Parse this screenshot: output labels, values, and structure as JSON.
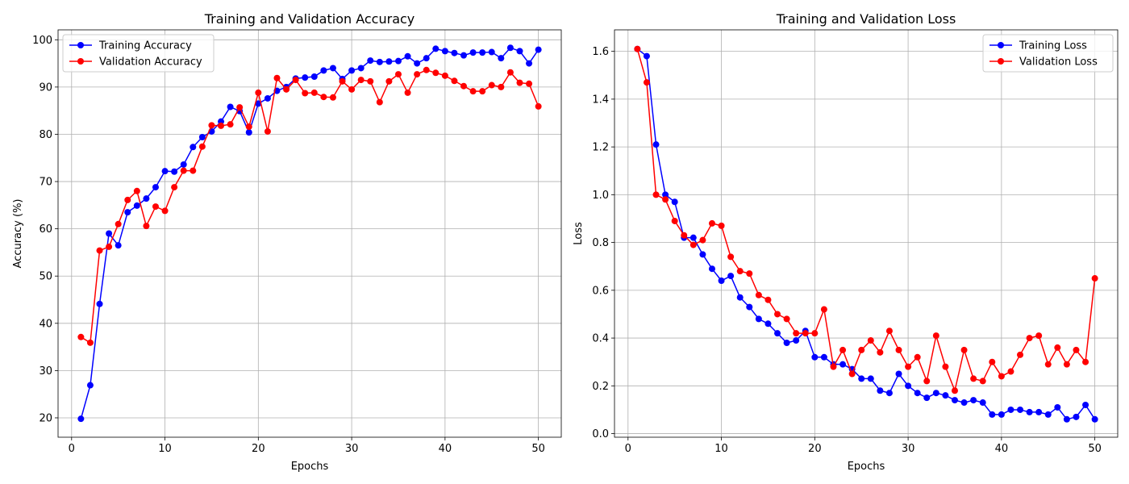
{
  "chart_data": [
    {
      "type": "line",
      "title": "Training and Validation Accuracy",
      "xlabel": "Epochs",
      "ylabel": "Accuracy (%)",
      "xlim": [
        -1.45,
        52.45
      ],
      "ylim": [
        15.9,
        102.1
      ],
      "xticks": [
        0,
        10,
        20,
        30,
        40,
        50
      ],
      "yticks": [
        20,
        30,
        40,
        50,
        60,
        70,
        80,
        90,
        100
      ],
      "grid": true,
      "legend": "upper left",
      "x": [
        1,
        2,
        3,
        4,
        5,
        6,
        7,
        8,
        9,
        10,
        11,
        12,
        13,
        14,
        15,
        16,
        17,
        18,
        19,
        20,
        21,
        22,
        23,
        24,
        25,
        26,
        27,
        28,
        29,
        30,
        31,
        32,
        33,
        34,
        35,
        36,
        37,
        38,
        39,
        40,
        41,
        42,
        43,
        44,
        45,
        46,
        47,
        48,
        49,
        50
      ],
      "series": [
        {
          "name": "Training Accuracy",
          "color": "#0000ff",
          "values": [
            19.8,
            26.9,
            44.1,
            59.0,
            56.5,
            63.5,
            64.9,
            66.4,
            68.8,
            72.2,
            72.1,
            73.6,
            77.3,
            79.4,
            80.6,
            82.7,
            85.8,
            84.9,
            80.4,
            86.5,
            87.6,
            89.2,
            90.0,
            91.8,
            92.0,
            92.2,
            93.5,
            94.0,
            91.7,
            93.5,
            94.0,
            95.6,
            95.3,
            95.4,
            95.5,
            96.5,
            95.0,
            96.1,
            98.1,
            97.6,
            97.2,
            96.7,
            97.3,
            97.3,
            97.4,
            96.1,
            98.3,
            97.6,
            95.0,
            97.9
          ]
        },
        {
          "name": "Validation Accuracy",
          "color": "#ff0000",
          "values": [
            37.1,
            35.9,
            55.4,
            56.2,
            61.0,
            66.1,
            68.0,
            60.6,
            64.7,
            63.8,
            68.8,
            72.3,
            72.3,
            77.4,
            81.9,
            81.8,
            82.1,
            85.7,
            81.6,
            88.8,
            80.6,
            91.9,
            89.5,
            91.5,
            88.7,
            88.8,
            87.9,
            87.8,
            91.2,
            89.5,
            91.5,
            91.2,
            86.8,
            91.2,
            92.7,
            88.8,
            92.7,
            93.6,
            93.0,
            92.4,
            91.3,
            90.2,
            89.1,
            89.1,
            90.4,
            90.0,
            93.1,
            90.9,
            90.7,
            85.9
          ]
        }
      ]
    },
    {
      "type": "line",
      "title": "Training and Validation Loss",
      "xlabel": "Epochs",
      "ylabel": "Loss",
      "xlim": [
        -1.45,
        52.45
      ],
      "ylim": [
        -0.015,
        1.69
      ],
      "xticks": [
        0,
        10,
        20,
        30,
        40,
        50
      ],
      "yticks": [
        0.0,
        0.2,
        0.4,
        0.6,
        0.8,
        1.0,
        1.2,
        1.4,
        1.6
      ],
      "ytick_labels": [
        "0.0",
        "0.2",
        "0.4",
        "0.6",
        "0.8",
        "1.0",
        "1.2",
        "1.4",
        "1.6"
      ],
      "grid": true,
      "legend": "upper right",
      "x": [
        1,
        2,
        3,
        4,
        5,
        6,
        7,
        8,
        9,
        10,
        11,
        12,
        13,
        14,
        15,
        16,
        17,
        18,
        19,
        20,
        21,
        22,
        23,
        24,
        25,
        26,
        27,
        28,
        29,
        30,
        31,
        32,
        33,
        34,
        35,
        36,
        37,
        38,
        39,
        40,
        41,
        42,
        43,
        44,
        45,
        46,
        47,
        48,
        49,
        50
      ],
      "series": [
        {
          "name": "Training Loss",
          "color": "#0000ff",
          "values": [
            1.61,
            1.58,
            1.21,
            1.0,
            0.97,
            0.82,
            0.82,
            0.75,
            0.69,
            0.64,
            0.66,
            0.57,
            0.53,
            0.48,
            0.46,
            0.42,
            0.38,
            0.39,
            0.43,
            0.32,
            0.32,
            0.29,
            0.29,
            0.27,
            0.23,
            0.23,
            0.18,
            0.17,
            0.25,
            0.2,
            0.17,
            0.15,
            0.17,
            0.16,
            0.14,
            0.13,
            0.14,
            0.13,
            0.08,
            0.08,
            0.1,
            0.1,
            0.09,
            0.09,
            0.08,
            0.11,
            0.06,
            0.07,
            0.12,
            0.06
          ]
        },
        {
          "name": "Validation Loss",
          "color": "#ff0000",
          "values": [
            1.61,
            1.47,
            1.0,
            0.98,
            0.89,
            0.83,
            0.79,
            0.81,
            0.88,
            0.87,
            0.74,
            0.68,
            0.67,
            0.58,
            0.56,
            0.5,
            0.48,
            0.42,
            0.42,
            0.42,
            0.52,
            0.28,
            0.35,
            0.25,
            0.35,
            0.39,
            0.34,
            0.43,
            0.35,
            0.28,
            0.32,
            0.22,
            0.41,
            0.28,
            0.18,
            0.35,
            0.23,
            0.22,
            0.3,
            0.24,
            0.26,
            0.33,
            0.4,
            0.41,
            0.29,
            0.36,
            0.29,
            0.35,
            0.3,
            0.65
          ]
        }
      ]
    }
  ]
}
